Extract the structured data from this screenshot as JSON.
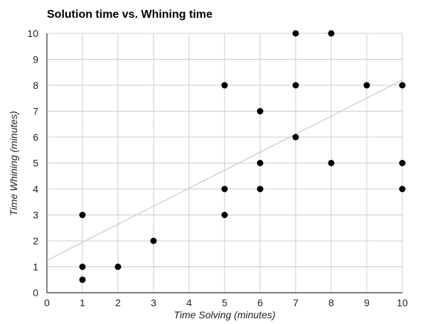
{
  "chart_data": {
    "type": "scatter",
    "title": "Solution time vs. Whining time",
    "xlabel": "Time Solving (minutes)",
    "ylabel": "Time Whining (minutes)",
    "xlim": [
      0,
      10
    ],
    "ylim": [
      0,
      10
    ],
    "x_ticks": [
      "0",
      "1",
      "2",
      "3",
      "4",
      "5",
      "6",
      "7",
      "8",
      "9",
      "10"
    ],
    "y_ticks": [
      "0",
      "1",
      "2",
      "3",
      "4",
      "5",
      "6",
      "7",
      "8",
      "9",
      "10"
    ],
    "grid": true,
    "legend": "none",
    "trendline": {
      "type": "linear",
      "x": [
        0,
        10
      ],
      "y": [
        1.25,
        8.2
      ]
    },
    "points": [
      {
        "x": 1,
        "y": 0.5
      },
      {
        "x": 1,
        "y": 1
      },
      {
        "x": 1,
        "y": 3
      },
      {
        "x": 2,
        "y": 1
      },
      {
        "x": 3,
        "y": 2
      },
      {
        "x": 5,
        "y": 3
      },
      {
        "x": 5,
        "y": 4
      },
      {
        "x": 5,
        "y": 8
      },
      {
        "x": 6,
        "y": 4
      },
      {
        "x": 6,
        "y": 5
      },
      {
        "x": 6,
        "y": 7
      },
      {
        "x": 7,
        "y": 6
      },
      {
        "x": 7,
        "y": 8
      },
      {
        "x": 7,
        "y": 10
      },
      {
        "x": 8,
        "y": 5
      },
      {
        "x": 8,
        "y": 10
      },
      {
        "x": 9,
        "y": 8
      },
      {
        "x": 10,
        "y": 4
      },
      {
        "x": 10,
        "y": 5
      },
      {
        "x": 10,
        "y": 8
      }
    ],
    "colors": {
      "point": "#000000",
      "grid": "#cccccc",
      "trendline": "#c8c8c8",
      "axis": "#333333"
    }
  }
}
